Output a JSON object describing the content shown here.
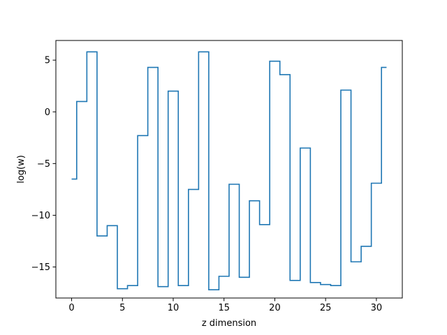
{
  "chart_data": {
    "type": "line",
    "drawstyle": "steps-mid",
    "xlabel": "z dimension",
    "ylabel": "log(w)",
    "xlim": [
      -1.55,
      32.55
    ],
    "ylim": [
      -18.0,
      6.9
    ],
    "x_ticks": [
      0,
      5,
      10,
      15,
      20,
      25,
      30
    ],
    "y_ticks": [
      5,
      0,
      -5,
      -10,
      -15
    ],
    "x_tick_labels": [
      "0",
      "5",
      "10",
      "15",
      "20",
      "25",
      "30"
    ],
    "y_tick_labels": [
      "5",
      "0",
      "−5",
      "−10",
      "−15"
    ],
    "line_color": "#1f77b4",
    "grid": false,
    "series": [
      {
        "x": [
          0,
          1,
          2,
          3,
          4,
          5,
          6,
          7,
          8,
          9,
          10,
          11,
          12,
          13,
          14,
          15,
          16,
          17,
          18,
          19,
          20,
          21,
          22,
          23,
          24,
          25,
          26,
          27,
          28,
          29,
          30,
          31
        ],
        "values": [
          -6.5,
          1.0,
          5.8,
          -12.0,
          -11.0,
          -17.1,
          -16.8,
          -2.3,
          4.3,
          -16.9,
          2.0,
          -16.8,
          -7.5,
          5.8,
          -17.2,
          -15.9,
          -7.0,
          -16.0,
          -8.6,
          -10.9,
          4.9,
          3.6,
          -16.3,
          -3.5,
          -16.5,
          -16.7,
          -16.8,
          2.1,
          -14.5,
          -13.0,
          -6.9,
          4.3
        ]
      }
    ]
  }
}
